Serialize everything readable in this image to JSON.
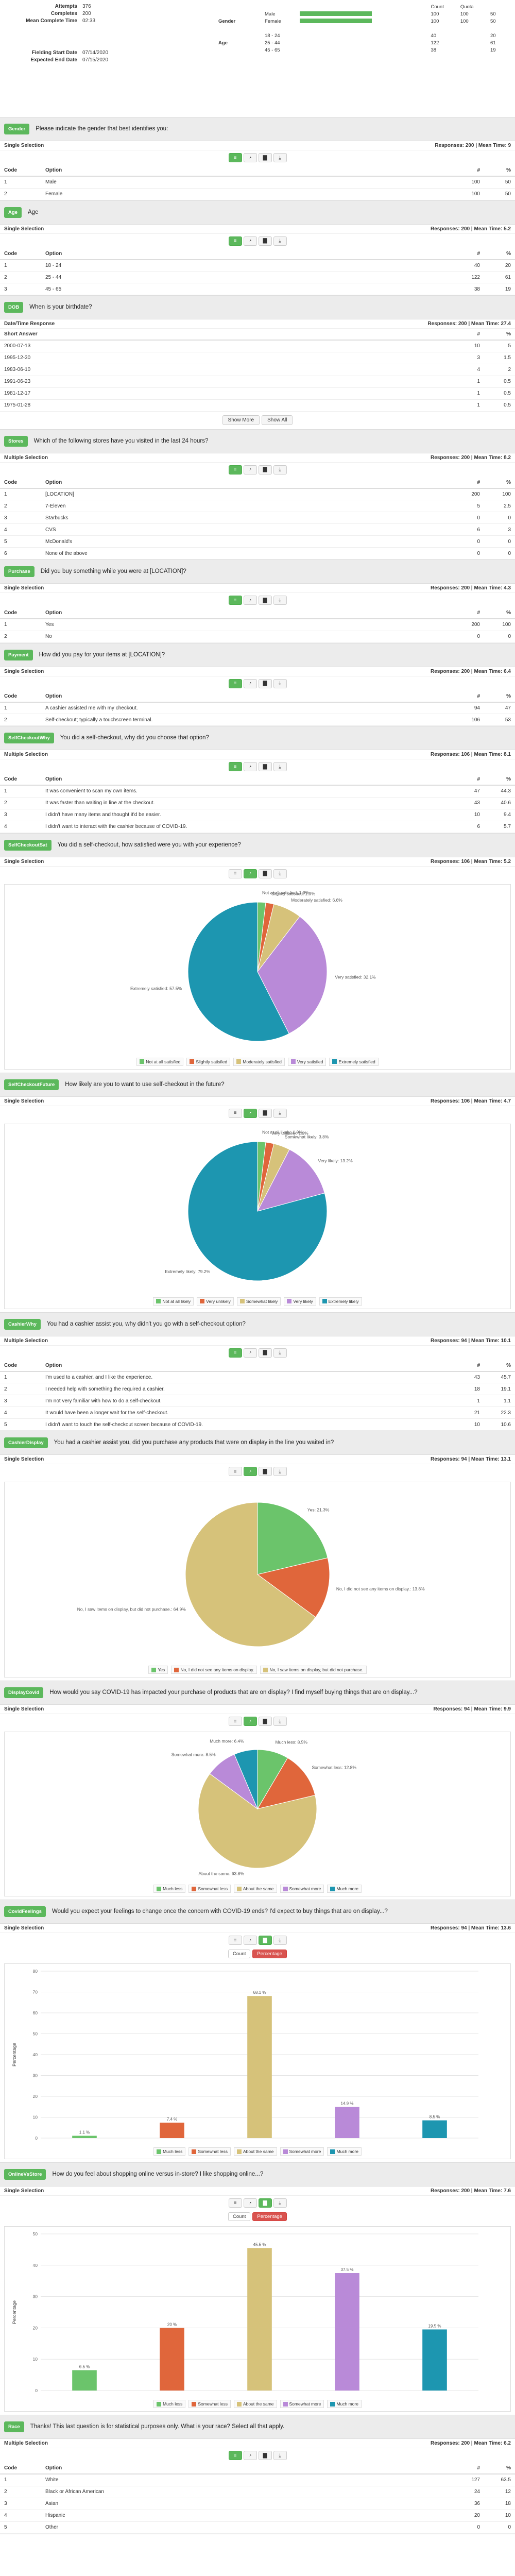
{
  "summary": {
    "attempts_label": "Attempts",
    "attempts": "376",
    "completes_label": "Completes",
    "completes": "200",
    "mean_label": "Mean Complete Time",
    "mean": "02:33",
    "fs_label": "Fielding Start Date",
    "fs": "07/14/2020",
    "fe_label": "Expected End Date",
    "fe": "07/15/2020"
  },
  "quotas": {
    "headers": [
      "Count",
      "Quota",
      ""
    ],
    "rows": [
      {
        "group": "",
        "label": "Male",
        "frac": 1,
        "count": "100",
        "quota": "100",
        "pct": "50"
      },
      {
        "group": "Gender",
        "label": "Female",
        "frac": 1,
        "count": "100",
        "quota": "100",
        "pct": "50"
      },
      {
        "group": "",
        "label": "",
        "frac": 0,
        "count": "",
        "quota": "",
        "pct": ""
      },
      {
        "group": "",
        "label": "18 - 24",
        "frac": 0,
        "count": "40",
        "quota": "",
        "pct": "20"
      },
      {
        "group": "Age",
        "label": "25 - 44",
        "frac": 0,
        "count": "122",
        "quota": "",
        "pct": "61"
      },
      {
        "group": "",
        "label": "45 - 65",
        "frac": 0,
        "count": "38",
        "quota": "",
        "pct": "19"
      }
    ]
  },
  "colors": {
    "green": "#5cb85c",
    "c1": "#6bc46b",
    "c2": "#e0663b",
    "c3": "#d6c27a",
    "c4": "#b98ad8",
    "c5": "#1d96b0"
  },
  "common": {
    "code": "Code",
    "option": "Option",
    "num": "#",
    "pct": "%",
    "single": "Single Selection",
    "multiple": "Multiple Selection",
    "datetime": "Date/Time Response",
    "short": "Short Answer",
    "showmore": "Show More",
    "showall": "Show All",
    "legend_sparse": []
  },
  "q1": {
    "tag": "Gender",
    "text": "Please indicate the gender that best identifies you:",
    "resp": "Responses: 200 | Mean Time: 9",
    "rows": [
      [
        "1",
        "Male",
        "100",
        "50"
      ],
      [
        "2",
        "Female",
        "100",
        "50"
      ]
    ]
  },
  "q2": {
    "tag": "Age",
    "text": "Age",
    "resp": "Responses: 200 | Mean Time: 5.2",
    "rows": [
      [
        "1",
        "18 - 24",
        "40",
        "20"
      ],
      [
        "2",
        "25 - 44",
        "122",
        "61"
      ],
      [
        "3",
        "45 - 65",
        "38",
        "19"
      ]
    ]
  },
  "q3": {
    "tag": "DOB",
    "text": "When is your birthdate?",
    "resp": "Responses: 200 | Mean Time: 27.4",
    "rows": [
      [
        "2000-07-13",
        "10",
        "5"
      ],
      [
        "1995-12-30",
        "3",
        "1.5"
      ],
      [
        "1983-06-10",
        "4",
        "2"
      ],
      [
        "1991-06-23",
        "1",
        "0.5"
      ],
      [
        "1981-12-17",
        "1",
        "0.5"
      ],
      [
        "1975-01-28",
        "1",
        "0.5"
      ]
    ]
  },
  "q4": {
    "tag": "Stores",
    "text": "Which of the following stores have you visited in the last 24 hours?",
    "resp": "Responses: 200 | Mean Time: 8.2",
    "rows": [
      [
        "1",
        "[LOCATION]",
        "200",
        "100"
      ],
      [
        "2",
        "7-Eleven",
        "5",
        "2.5"
      ],
      [
        "3",
        "Starbucks",
        "0",
        "0"
      ],
      [
        "4",
        "CVS",
        "6",
        "3"
      ],
      [
        "5",
        "McDonald's",
        "0",
        "0"
      ],
      [
        "6",
        "None of the above",
        "0",
        "0"
      ]
    ]
  },
  "q5": {
    "tag": "Purchase",
    "text": "Did you buy something while you were at [LOCATION]?",
    "resp": "Responses: 200 | Mean Time: 4.3",
    "rows": [
      [
        "1",
        "Yes",
        "200",
        "100"
      ],
      [
        "2",
        "No",
        "0",
        "0"
      ]
    ]
  },
  "q6": {
    "tag": "Payment",
    "text": "How did you pay for your items at [LOCATION]?",
    "resp": "Responses: 200 | Mean Time: 6.4",
    "rows": [
      [
        "1",
        "A cashier assisted me with my checkout.",
        "94",
        "47"
      ],
      [
        "2",
        "Self-checkout; typically a touchscreen terminal.",
        "106",
        "53"
      ]
    ]
  },
  "q7": {
    "tag": "SelfCheckoutWhy",
    "text": "You did a self-checkout, why did you choose that option?",
    "resp": "Responses: 106 | Mean Time: 8.1",
    "rows": [
      [
        "1",
        "It was convenient to scan my own items.",
        "47",
        "44.3"
      ],
      [
        "2",
        "It was faster than waiting in line at the checkout.",
        "43",
        "40.6"
      ],
      [
        "3",
        "I didn't have many items and thought it'd be easier.",
        "10",
        "9.4"
      ],
      [
        "4",
        "I didn't want to interact with the cashier because of COVID-19.",
        "6",
        "5.7"
      ]
    ]
  },
  "q8": {
    "tag": "SelfCheckoutSat",
    "text": "You did a self-checkout, how satisfied were you with your experience?",
    "resp": "Responses: 106 | Mean Time: 5.2",
    "chart_data": {
      "type": "pie",
      "categories": [
        "Not at all satisfied",
        "Slightly satisfied",
        "Moderately satisfied",
        "Very satisfied",
        "Extremely satisfied"
      ],
      "values": [
        1.9,
        1.9,
        6.6,
        32.1,
        57.5
      ],
      "legend": "bottom"
    }
  },
  "q9": {
    "tag": "SelfCheckoutFuture",
    "text": "How likely are you to want to use self-checkout in the future?",
    "resp": "Responses: 106 | Mean Time: 4.7",
    "chart_data": {
      "type": "pie",
      "categories": [
        "Not at all likely",
        "Very unlikely",
        "Somewhat likely",
        "Very likely",
        "Extremely likely"
      ],
      "values": [
        1.9,
        1.9,
        3.8,
        13.2,
        79.2
      ],
      "legend": "bottom"
    }
  },
  "q10": {
    "tag": "CashierWhy",
    "text": "You had a cashier assist you, why didn't you go with a self-checkout option?",
    "resp": "Responses: 94 | Mean Time: 10.1",
    "rows": [
      [
        "1",
        "I'm used to a cashier, and I like the experience.",
        "43",
        "45.7"
      ],
      [
        "2",
        "I needed help with something the required a cashier.",
        "18",
        "19.1"
      ],
      [
        "3",
        "I'm not very familiar with how to do a self-checkout.",
        "1",
        "1.1"
      ],
      [
        "4",
        "It would have been a longer wait for the self-checkout.",
        "21",
        "22.3"
      ],
      [
        "5",
        "I didn't want to touch the self-checkout screen because of COVID-19.",
        "10",
        "10.6"
      ]
    ]
  },
  "q11": {
    "tag": "CashierDisplay",
    "text": "You had a cashier assist you, did you purchase any products that were on display in the line you waited in?",
    "resp": "Responses: 94 | Mean Time: 13.1",
    "chart_data": {
      "type": "pie",
      "categories": [
        "Yes",
        "No, I did not see any items on display.",
        "No, I saw items on display, but did not purchase."
      ],
      "values": [
        21.3,
        13.8,
        64.9
      ],
      "legend": "bottom"
    }
  },
  "q12": {
    "tag": "DisplayCovid",
    "text": "How would you say COVID-19 has impacted your purchase of products that are on display? I find myself buying things that are on display...?",
    "resp": "Responses: 94 | Mean Time: 9.9",
    "chart_data": {
      "type": "pie",
      "categories": [
        "Much less",
        "Somewhat less",
        "About the same",
        "Somewhat more",
        "Much more"
      ],
      "values": [
        8.5,
        12.8,
        63.8,
        8.5,
        6.4
      ],
      "legend": "bottom"
    }
  },
  "q13": {
    "tag": "CovidFeelings",
    "text": "Would you expect your feelings to change once the concern with COVID-19 ends? I'd expect to buy things that are on display...?",
    "resp": "Responses: 94 | Mean Time: 13.6",
    "chart_data": {
      "type": "bar",
      "categories": [
        "Much less",
        "Somewhat less",
        "About the same",
        "Somewhat more",
        "Much more"
      ],
      "values": [
        1.1,
        7.4,
        68.1,
        14.9,
        8.5
      ],
      "ylabel": "Percentage",
      "ylim": [
        0,
        80
      ],
      "ticks": [
        0,
        10,
        20,
        30,
        40,
        50,
        60,
        70,
        80
      ],
      "legend": "bottom",
      "toggle": [
        "Count",
        "Percentage"
      ]
    }
  },
  "q14": {
    "tag": "OnlineVsStore",
    "text": "How do you feel about shopping online versus in-store? I like shopping online...?",
    "resp": "Responses: 200 | Mean Time: 7.6",
    "chart_data": {
      "type": "bar",
      "categories": [
        "Much less",
        "Somewhat less",
        "About the same",
        "Somewhat more",
        "Much more"
      ],
      "values": [
        6.5,
        20,
        45.5,
        37.5,
        19.5
      ],
      "ylabel": "Percentage",
      "ylim": [
        0,
        50
      ],
      "ticks": [
        0,
        10,
        20,
        30,
        40,
        50
      ],
      "legend": "bottom",
      "toggle": [
        "Count",
        "Percentage"
      ]
    }
  },
  "q15": {
    "tag": "Race",
    "text": "Thanks! This last question is for statistical purposes only. What is your race? Select all that apply.",
    "resp": "Responses: 200 | Mean Time: 6.2",
    "rows": [
      [
        "1",
        "White",
        "127",
        "63.5"
      ],
      [
        "2",
        "Black or African American",
        "24",
        "12"
      ],
      [
        "3",
        "Asian",
        "36",
        "18"
      ],
      [
        "4",
        "Hispanic",
        "20",
        "10"
      ],
      [
        "5",
        "Other",
        "0",
        "0"
      ]
    ]
  }
}
